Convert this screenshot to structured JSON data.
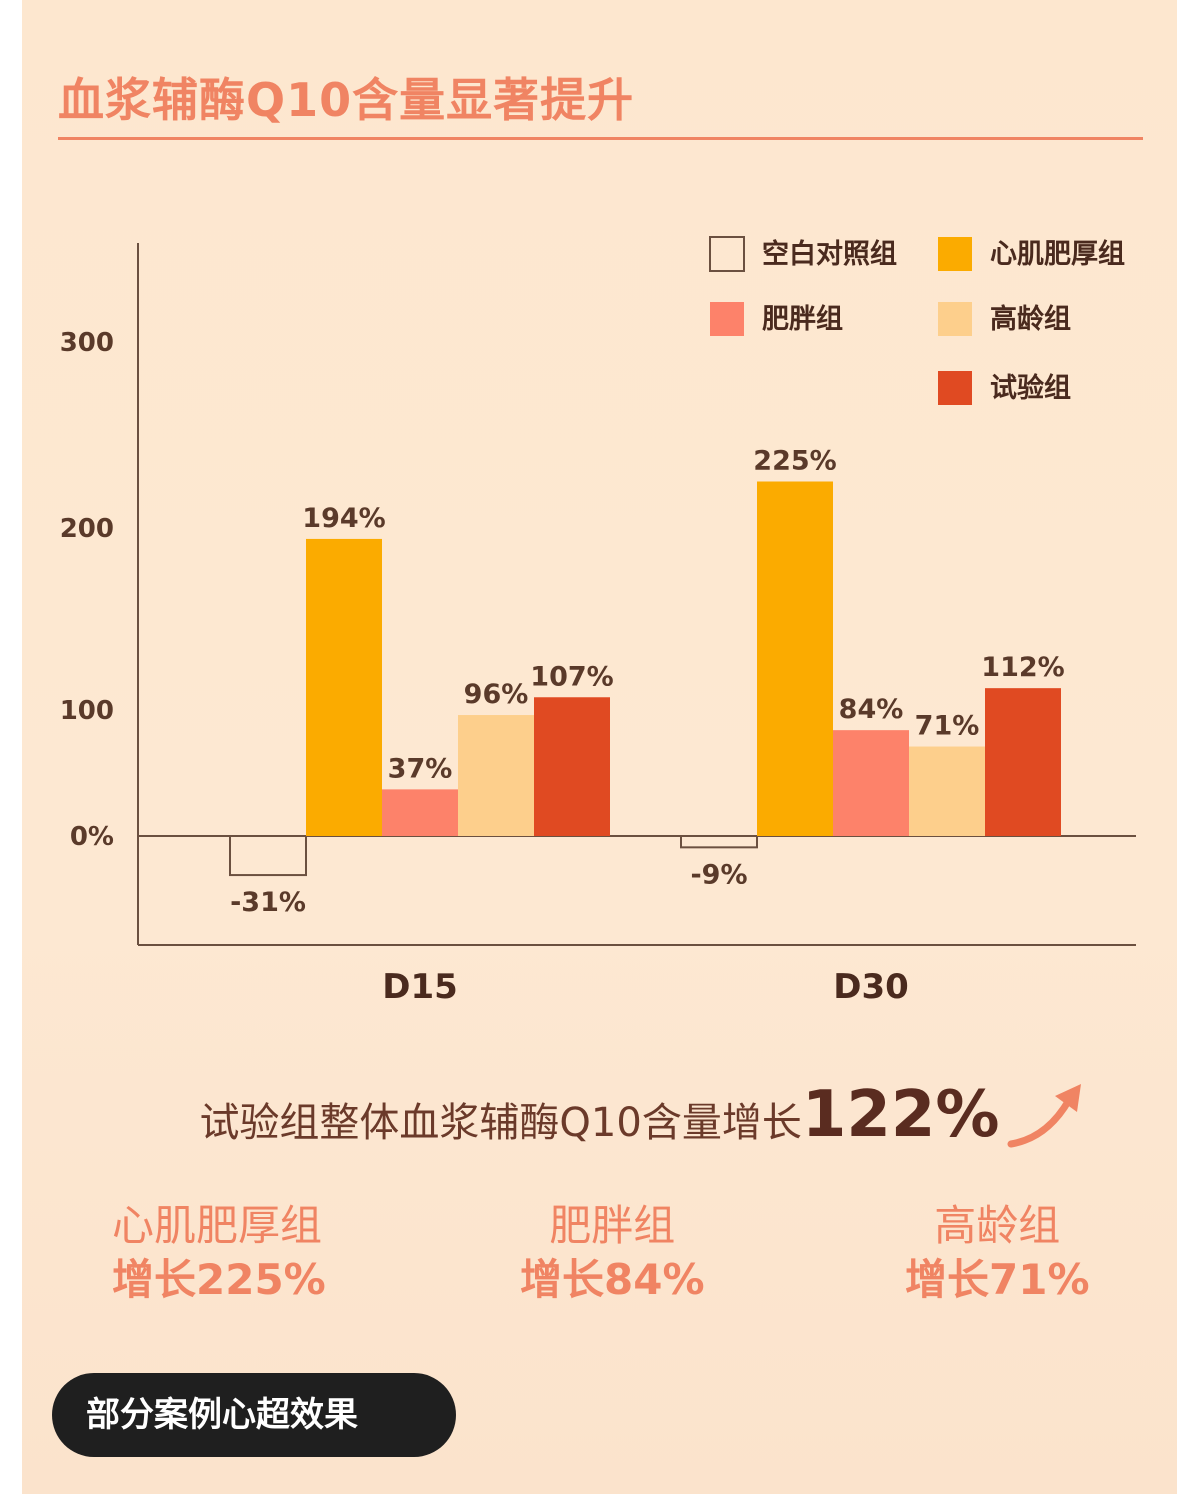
{
  "header": {
    "title": "血浆辅酶Q10含量显著提升"
  },
  "chart_data": {
    "type": "bar",
    "categories": [
      "D15",
      "D30"
    ],
    "series": [
      {
        "name": "空白对照组",
        "color": "#ffffff",
        "values": [
          -31,
          -9
        ],
        "labels": [
          "-31%",
          "-9%"
        ]
      },
      {
        "name": "心肌肥厚组",
        "color": "#fbab00",
        "values": [
          194,
          225
        ],
        "labels": [
          "194%",
          "225%"
        ]
      },
      {
        "name": "肥胖组",
        "color": "#fd826a",
        "values": [
          37,
          84
        ],
        "labels": [
          "37%",
          "84%"
        ]
      },
      {
        "name": "高龄组",
        "color": "#fdcf8c",
        "values": [
          96,
          71
        ],
        "labels": [
          "96%",
          "71%"
        ]
      },
      {
        "name": "试验组",
        "color": "#e04a22",
        "values": [
          107,
          112
        ],
        "labels": [
          "107%",
          "112%"
        ]
      }
    ],
    "y_ticks": [
      {
        "value": 0,
        "label": "0%"
      },
      {
        "value": 100,
        "label": "100"
      },
      {
        "value": 200,
        "label": "200"
      },
      {
        "value": 300,
        "label": "300"
      }
    ],
    "ylim": [
      -60,
      320
    ],
    "grid": false,
    "legend_position": "top-right"
  },
  "summary": {
    "text": "试验组整体血浆辅酶Q10含量增长",
    "highlight": "122%"
  },
  "stats": [
    {
      "name": "心肌肥厚组",
      "value": "增长225%"
    },
    {
      "name": "肥胖组",
      "value": "增长84%"
    },
    {
      "name": "高龄组",
      "value": "增长71%"
    }
  ],
  "footer": {
    "button_label": "部分案例心超效果"
  },
  "colors": {
    "accent": "#f08463",
    "text_dark": "#5a2c20",
    "axis": "#6b5040"
  }
}
